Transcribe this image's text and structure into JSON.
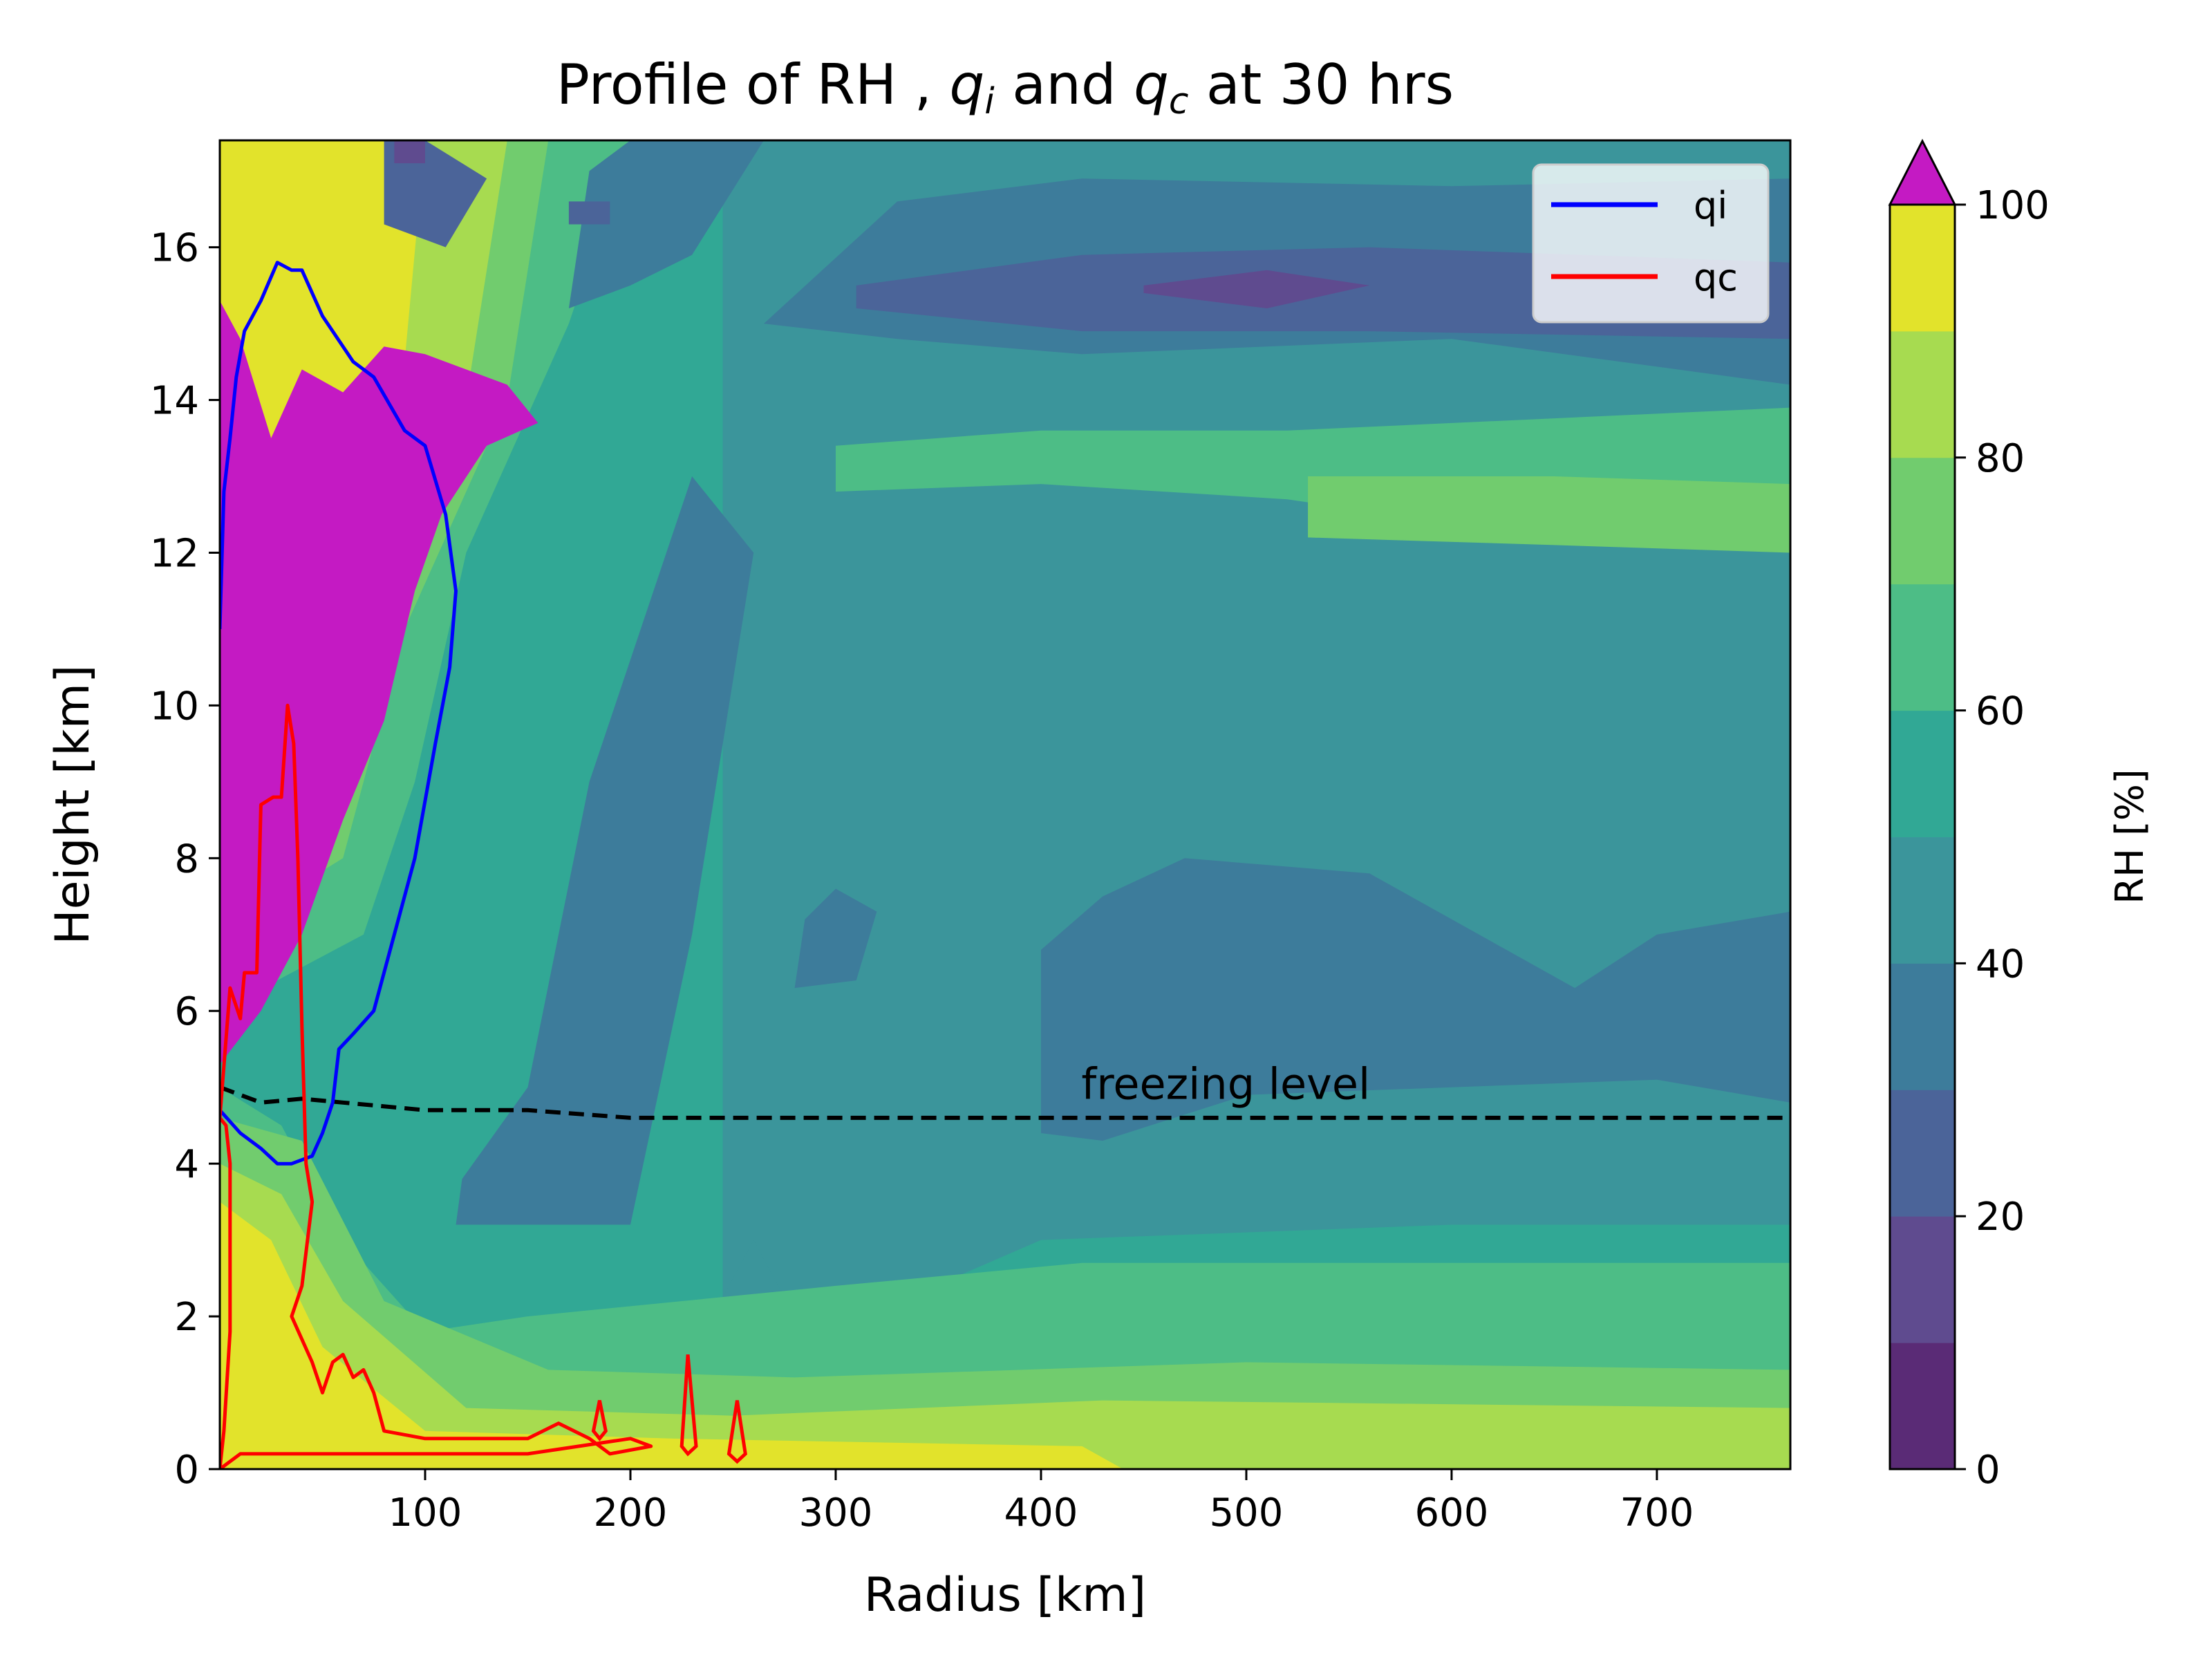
{
  "chart_data": {
    "type": "contour",
    "title": "Profile of RH , q_i and q_c at 30 hrs",
    "title_parts": {
      "pre": "Profile of RH , ",
      "q_i": "q",
      "i_sub": "i",
      "mid": " and ",
      "q_c": "q",
      "c_sub": "c",
      "post": " at 30 hrs"
    },
    "xlabel": "Radius [km]",
    "ylabel": "Height [km]",
    "xlim": [
      0,
      765
    ],
    "ylim": [
      0,
      17.4
    ],
    "xticks": [
      100,
      200,
      300,
      400,
      500,
      600,
      700
    ],
    "yticks": [
      0,
      2,
      4,
      6,
      8,
      10,
      12,
      14,
      16
    ],
    "grid": false,
    "colorbar": {
      "label": "RH [%]",
      "levels": [
        0,
        10,
        20,
        30,
        40,
        50,
        60,
        70,
        80,
        90,
        100
      ],
      "ticks": [
        0,
        20,
        40,
        60,
        80,
        100
      ],
      "colors": [
        "#5a2b76",
        "#5f4b8f",
        "#4b6499",
        "#3d7c9b",
        "#3b959b",
        "#31a895",
        "#4dbd86",
        "#71cc6e",
        "#a7db50",
        "#e2e32b"
      ],
      "over_color": "#c41ac3",
      "extend": "max"
    },
    "background_level_rh": 55,
    "rh_regions": [
      {
        "level": 45,
        "polygons": [
          [
            [
              245,
              0.6
            ],
            [
              300,
              1.5
            ],
            [
              340,
              2.3
            ],
            [
              400,
              3.0
            ],
            [
              600,
              3.2
            ],
            [
              765,
              3.2
            ],
            [
              765,
              17.4
            ],
            [
              245,
              17.4
            ]
          ],
          [
            [
              120,
              1.5
            ],
            [
              200,
              1.6
            ],
            [
              240,
              2.0
            ],
            [
              260,
              3.0
            ],
            [
              280,
              2.0
            ],
            [
              250,
              1.0
            ],
            [
              200,
              0.9
            ],
            [
              130,
              1.0
            ]
          ]
        ]
      },
      {
        "level": 65,
        "polygons": [
          [
            [
              0,
              0
            ],
            [
              765,
              0
            ],
            [
              765,
              2.7
            ],
            [
              420,
              2.7
            ],
            [
              300,
              2.4
            ],
            [
              150,
              2.0
            ],
            [
              100,
              1.8
            ],
            [
              60,
              3.0
            ],
            [
              30,
              4.5
            ],
            [
              0,
              5
            ]
          ],
          [
            [
              0,
              6
            ],
            [
              70,
              7
            ],
            [
              95,
              9
            ],
            [
              120,
              12
            ],
            [
              170,
              15
            ],
            [
              200,
              17.4
            ],
            [
              0,
              17.4
            ]
          ],
          [
            [
              300,
              12.8
            ],
            [
              400,
              12.9
            ],
            [
              520,
              12.7
            ],
            [
              620,
              12.3
            ],
            [
              765,
              12.4
            ],
            [
              765,
              13.9
            ],
            [
              520,
              13.6
            ],
            [
              400,
              13.6
            ],
            [
              300,
              13.4
            ]
          ]
        ]
      },
      {
        "level": 75,
        "polygons": [
          [
            [
              0,
              0
            ],
            [
              765,
              0
            ],
            [
              765,
              1.3
            ],
            [
              500,
              1.4
            ],
            [
              280,
              1.2
            ],
            [
              160,
              1.3
            ],
            [
              80,
              2.2
            ],
            [
              40,
              4.3
            ],
            [
              0,
              4.6
            ]
          ],
          [
            [
              0,
              7
            ],
            [
              60,
              8
            ],
            [
              90,
              11
            ],
            [
              140,
              14
            ],
            [
              160,
              17.4
            ],
            [
              0,
              17.4
            ]
          ],
          [
            [
              530,
              12.2
            ],
            [
              650,
              12.1
            ],
            [
              765,
              12.0
            ],
            [
              765,
              12.9
            ],
            [
              650,
              13.0
            ],
            [
              530,
              13.0
            ]
          ]
        ]
      },
      {
        "level": 85,
        "polygons": [
          [
            [
              0,
              0
            ],
            [
              500,
              0
            ],
            [
              765,
              0
            ],
            [
              765,
              0.8
            ],
            [
              430,
              0.9
            ],
            [
              250,
              0.7
            ],
            [
              120,
              0.8
            ],
            [
              60,
              2.2
            ],
            [
              30,
              3.6
            ],
            [
              0,
              4
            ]
          ],
          [
            [
              0,
              8
            ],
            [
              50,
              9
            ],
            [
              70,
              12
            ],
            [
              120,
              14
            ],
            [
              140,
              17.4
            ],
            [
              0,
              17.4
            ]
          ]
        ]
      },
      {
        "level": 95,
        "polygons": [
          [
            [
              0,
              0
            ],
            [
              440,
              0
            ],
            [
              420,
              0.3
            ],
            [
              220,
              0.4
            ],
            [
              100,
              0.5
            ],
            [
              50,
              1.6
            ],
            [
              25,
              3.0
            ],
            [
              0,
              3.5
            ]
          ],
          [
            [
              0,
              8.5
            ],
            [
              35,
              9.5
            ],
            [
              55,
              12.5
            ],
            [
              90,
              14.5
            ],
            [
              100,
              17.4
            ],
            [
              0,
              17.4
            ]
          ]
        ]
      },
      {
        "level": 35,
        "polygons": [
          [
            [
              115,
              3.2
            ],
            [
              200,
              3.2
            ],
            [
              230,
              7.0
            ],
            [
              260,
              12.0
            ],
            [
              230,
              13.0
            ],
            [
              180,
              9.0
            ],
            [
              150,
              5.0
            ],
            [
              118,
              3.8
            ]
          ],
          [
            [
              400,
              4.4
            ],
            [
              430,
              4.3
            ],
            [
              500,
              4.9
            ],
            [
              700,
              5.1
            ],
            [
              765,
              4.8
            ],
            [
              765,
              7.3
            ],
            [
              700,
              7.0
            ],
            [
              660,
              6.3
            ],
            [
              560,
              7.8
            ],
            [
              470,
              8.0
            ],
            [
              430,
              7.5
            ],
            [
              400,
              6.8
            ]
          ],
          [
            [
              280,
              6.3
            ],
            [
              310,
              6.4
            ],
            [
              320,
              7.3
            ],
            [
              300,
              7.6
            ],
            [
              285,
              7.2
            ]
          ],
          [
            [
              170,
              15.2
            ],
            [
              180,
              17.0
            ],
            [
              200,
              17.4
            ],
            [
              265,
              17.4
            ],
            [
              230,
              15.9
            ],
            [
              200,
              15.5
            ]
          ],
          [
            [
              265,
              15.0
            ],
            [
              330,
              16.6
            ],
            [
              420,
              16.9
            ],
            [
              600,
              16.8
            ],
            [
              765,
              16.9
            ],
            [
              765,
              14.2
            ],
            [
              600,
              14.8
            ],
            [
              420,
              14.6
            ],
            [
              330,
              14.8
            ]
          ]
        ]
      },
      {
        "level": 25,
        "polygons": [
          [
            [
              310,
              15.5
            ],
            [
              420,
              15.9
            ],
            [
              560,
              16.0
            ],
            [
              765,
              15.8
            ],
            [
              765,
              14.8
            ],
            [
              560,
              14.9
            ],
            [
              420,
              14.9
            ],
            [
              310,
              15.2
            ]
          ],
          [
            [
              80,
              16.3
            ],
            [
              110,
              16.0
            ],
            [
              130,
              16.9
            ],
            [
              100,
              17.4
            ],
            [
              80,
              17.4
            ]
          ],
          [
            [
              170,
              16.6
            ],
            [
              190,
              16.6
            ],
            [
              190,
              16.3
            ],
            [
              170,
              16.3
            ]
          ]
        ]
      },
      {
        "level": 15,
        "polygons": [
          [
            [
              450,
              15.5
            ],
            [
              510,
              15.7
            ],
            [
              560,
              15.5
            ],
            [
              510,
              15.2
            ],
            [
              450,
              15.4
            ]
          ],
          [
            [
              85,
              17.1
            ],
            [
              100,
              17.1
            ],
            [
              100,
              17.4
            ],
            [
              85,
              17.4
            ]
          ]
        ]
      },
      {
        "level": 105,
        "polygons": [
          [
            [
              0,
              5.3
            ],
            [
              20,
              6.0
            ],
            [
              40,
              7.0
            ],
            [
              60,
              8.5
            ],
            [
              80,
              9.8
            ],
            [
              95,
              11.5
            ],
            [
              108,
              12.5
            ],
            [
              130,
              13.4
            ],
            [
              155,
              13.7
            ],
            [
              140,
              14.2
            ],
            [
              100,
              14.6
            ],
            [
              80,
              14.7
            ],
            [
              60,
              14.1
            ],
            [
              40,
              14.4
            ],
            [
              25,
              13.5
            ],
            [
              10,
              14.8
            ],
            [
              0,
              15.3
            ]
          ]
        ]
      }
    ],
    "series": [
      {
        "name": "qi",
        "color": "#0000ff",
        "points": [
          [
            0,
            11
          ],
          [
            2,
            12.8
          ],
          [
            5,
            13.5
          ],
          [
            8,
            14.3
          ],
          [
            12,
            14.9
          ],
          [
            20,
            15.3
          ],
          [
            28,
            15.8
          ],
          [
            35,
            15.7
          ],
          [
            40,
            15.7
          ],
          [
            50,
            15.1
          ],
          [
            55,
            14.9
          ],
          [
            65,
            14.5
          ],
          [
            75,
            14.3
          ],
          [
            90,
            13.6
          ],
          [
            100,
            13.4
          ],
          [
            110,
            12.5
          ],
          [
            115,
            11.5
          ],
          [
            112,
            10.5
          ],
          [
            105,
            9.5
          ],
          [
            95,
            8.0
          ],
          [
            85,
            7.0
          ],
          [
            75,
            6.0
          ],
          [
            65,
            5.7
          ],
          [
            58,
            5.5
          ],
          [
            55,
            4.8
          ],
          [
            50,
            4.4
          ],
          [
            45,
            4.1
          ],
          [
            35,
            4.0
          ],
          [
            28,
            4.0
          ],
          [
            20,
            4.2
          ],
          [
            10,
            4.4
          ],
          [
            0,
            4.7
          ]
        ]
      },
      {
        "name": "qc",
        "color": "#ff0000",
        "points": [
          [
            0,
            0
          ],
          [
            2,
            0.5
          ],
          [
            5,
            1.8
          ],
          [
            5,
            4.0
          ],
          [
            3,
            4.5
          ],
          [
            0,
            4.6
          ],
          [
            5,
            6.3
          ],
          [
            10,
            5.9
          ],
          [
            12,
            6.5
          ],
          [
            18,
            6.5
          ],
          [
            20,
            8.7
          ],
          [
            26,
            8.8
          ],
          [
            30,
            8.8
          ],
          [
            33,
            10.0
          ],
          [
            36,
            9.5
          ],
          [
            38,
            8.0
          ],
          [
            40,
            5.8
          ],
          [
            42,
            4.0
          ],
          [
            45,
            3.5
          ],
          [
            40,
            2.4
          ],
          [
            35,
            2.0
          ],
          [
            45,
            1.4
          ],
          [
            50,
            1.0
          ],
          [
            55,
            1.4
          ],
          [
            60,
            1.5
          ],
          [
            65,
            1.2
          ],
          [
            70,
            1.3
          ],
          [
            75,
            1.0
          ],
          [
            80,
            0.5
          ],
          [
            100,
            0.4
          ],
          [
            150,
            0.4
          ],
          [
            165,
            0.6
          ],
          [
            180,
            0.4
          ],
          [
            190,
            0.2
          ],
          [
            210,
            0.3
          ],
          [
            200,
            0.4
          ],
          [
            150,
            0.2
          ],
          [
            50,
            0.2
          ],
          [
            10,
            0.2
          ],
          [
            0,
            0
          ]
        ]
      }
    ],
    "qc_fragments": [
      [
        [
          182,
          0.5
        ],
        [
          185,
          0.9
        ],
        [
          188,
          0.5
        ],
        [
          185,
          0.4
        ]
      ],
      [
        [
          225,
          0.3
        ],
        [
          228,
          1.5
        ],
        [
          232,
          0.3
        ],
        [
          228,
          0.2
        ]
      ],
      [
        [
          248,
          0.2
        ],
        [
          252,
          0.9
        ],
        [
          256,
          0.2
        ],
        [
          252,
          0.1
        ]
      ]
    ],
    "freezing_level": {
      "label": "freezing level",
      "points": [
        [
          0,
          5.0
        ],
        [
          20,
          4.8
        ],
        [
          40,
          4.85
        ],
        [
          60,
          4.8
        ],
        [
          100,
          4.7
        ],
        [
          150,
          4.7
        ],
        [
          200,
          4.6
        ],
        [
          300,
          4.6
        ],
        [
          400,
          4.6
        ],
        [
          500,
          4.6
        ],
        [
          600,
          4.6
        ],
        [
          700,
          4.6
        ],
        [
          765,
          4.6
        ]
      ]
    },
    "legend": {
      "position": "upper right",
      "entries": [
        "qi",
        "qc"
      ]
    }
  }
}
